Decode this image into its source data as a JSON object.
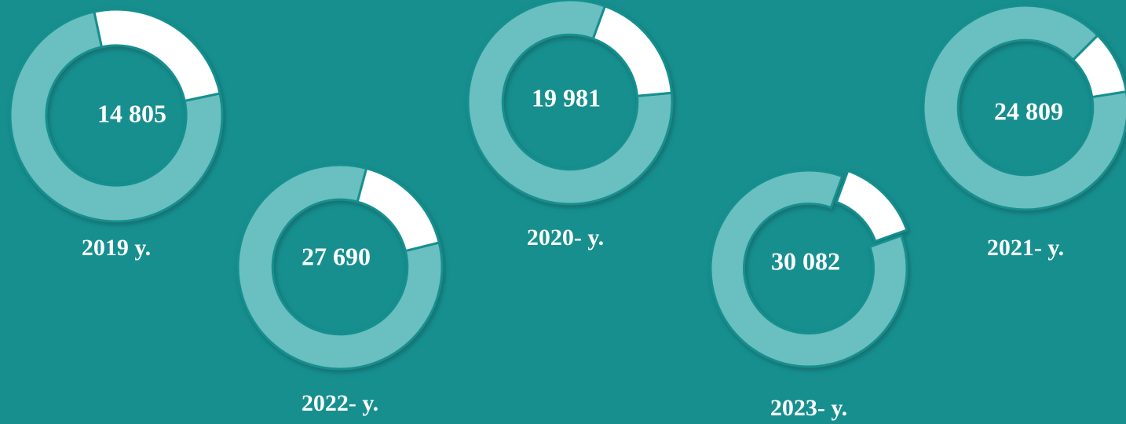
{
  "chart_data": {
    "type": "donut",
    "categories": [
      "2019 y.",
      "2022- y.",
      "2020- y.",
      "2023- y.",
      "2021- y."
    ],
    "values": [
      14805,
      27690,
      19981,
      30082,
      24809
    ],
    "value_labels": [
      "14 805",
      "27 690",
      "19 981",
      "30 082",
      "24 809"
    ],
    "shares": [
      25,
      17,
      18,
      14,
      10
    ],
    "colors": {
      "ring": "#6bbfc0",
      "share": "#ffffff",
      "background": "#178f8f"
    }
  }
}
